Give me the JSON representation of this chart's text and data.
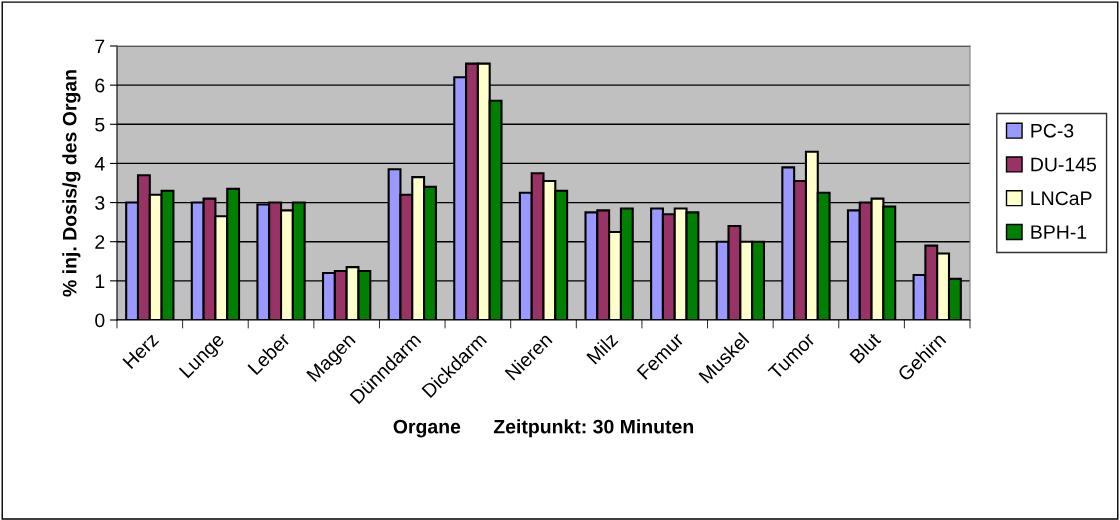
{
  "chart_data": {
    "type": "bar",
    "xlabel": "Organe      Zeitpunkt: 30 Minuten",
    "ylabel": "% inj. Dosis/g des Organ",
    "categories": [
      "Herz",
      "Lunge",
      "Leber",
      "Magen",
      "Dünndarm",
      "Dickdarm",
      "Nieren",
      "Milz",
      "Femur",
      "Muskel",
      "Tumor",
      "Blut",
      "Gehirn"
    ],
    "series": [
      {
        "name": "PC-3",
        "color": "#9999ff",
        "values": [
          3.0,
          3.0,
          2.95,
          1.2,
          3.85,
          6.2,
          3.25,
          2.75,
          2.85,
          2.0,
          3.9,
          2.8,
          1.15
        ]
      },
      {
        "name": "DU-145",
        "color": "#993366",
        "values": [
          3.7,
          3.1,
          3.0,
          1.25,
          3.2,
          6.55,
          3.75,
          2.8,
          2.7,
          2.4,
          3.55,
          3.0,
          1.9
        ]
      },
      {
        "name": "LNCaP",
        "color": "#ffffcc",
        "values": [
          3.2,
          2.65,
          2.8,
          1.35,
          3.65,
          6.55,
          3.55,
          2.25,
          2.85,
          2.0,
          4.3,
          3.1,
          1.7
        ]
      },
      {
        "name": "BPH-1",
        "color": "#008000",
        "values": [
          3.3,
          3.35,
          3.0,
          1.25,
          3.4,
          5.6,
          3.3,
          2.85,
          2.75,
          2.0,
          3.25,
          2.9,
          1.05
        ]
      }
    ],
    "ylim": [
      0,
      7
    ],
    "yticks": [
      0,
      1,
      2,
      3,
      4,
      5,
      6,
      7
    ],
    "grid": "y",
    "legend": "right"
  }
}
